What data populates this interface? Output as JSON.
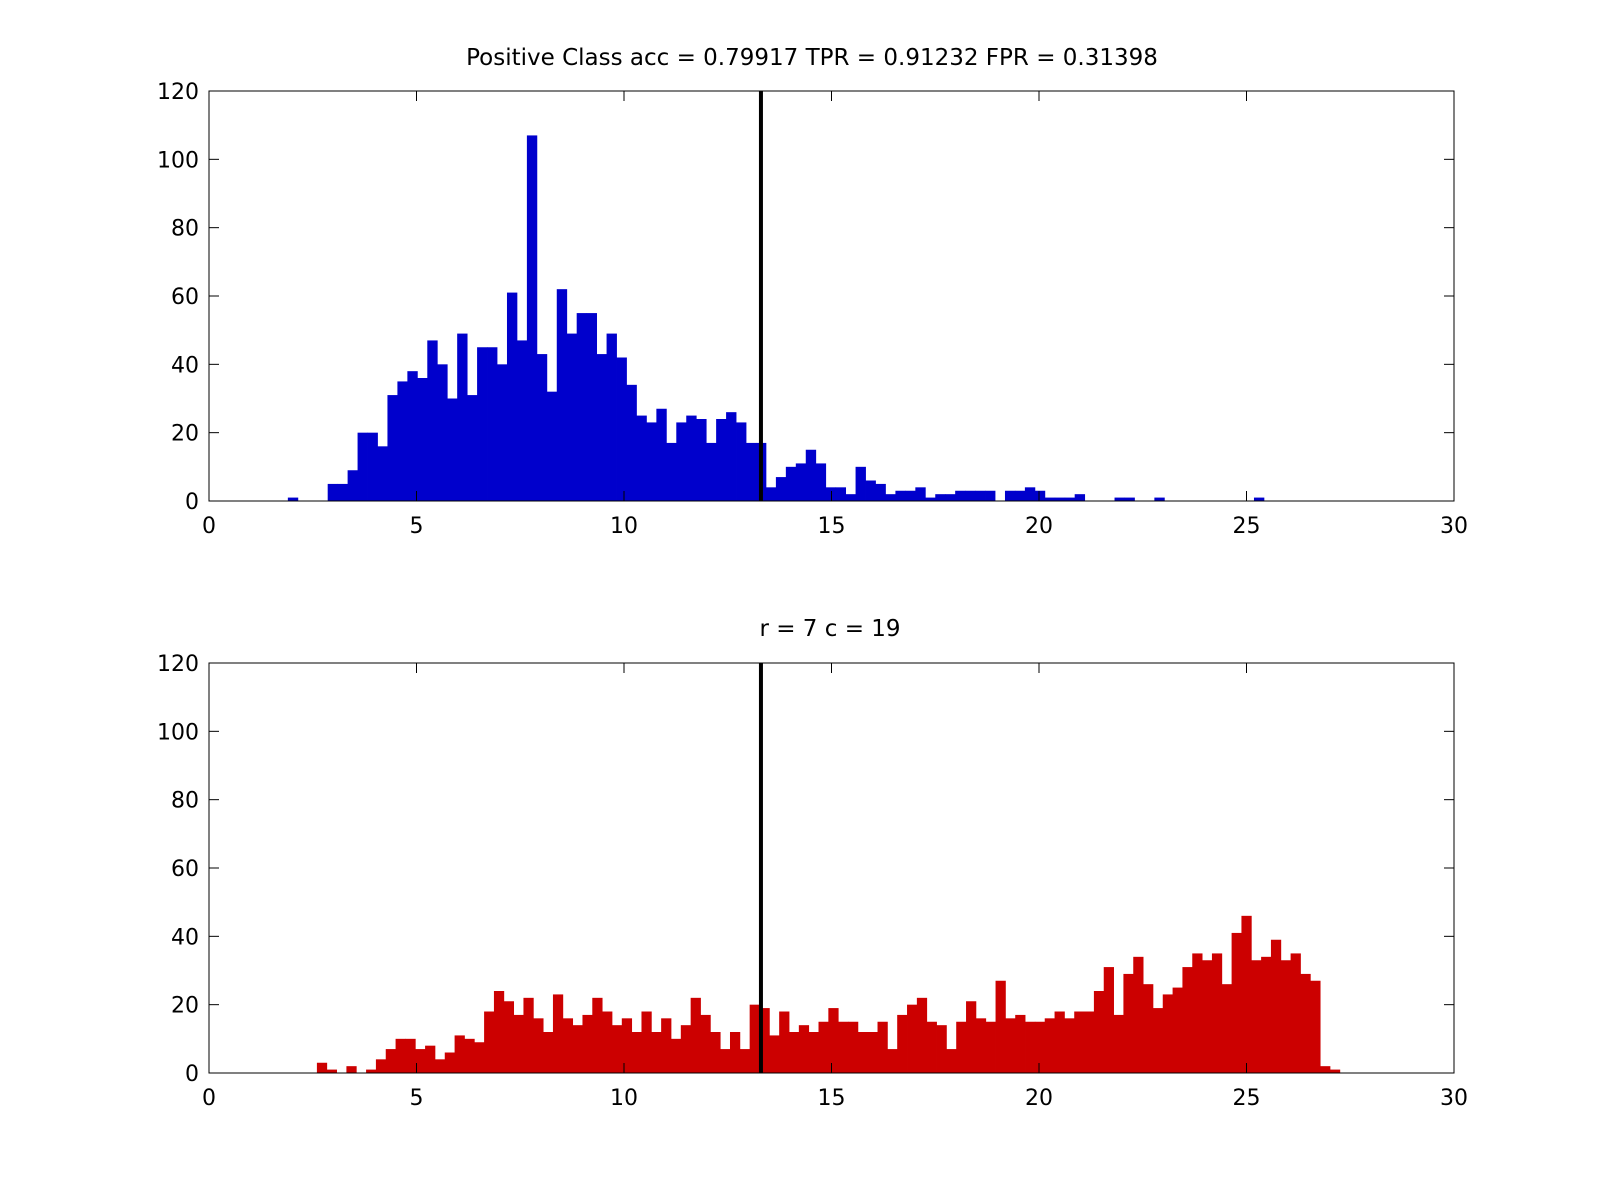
{
  "chart_data": [
    {
      "type": "bar",
      "title": "Positive Class  acc = 0.79917 TPR = 0.91232 FPR = 0.31398",
      "xlim": [
        0,
        30
      ],
      "ylim": [
        0,
        120
      ],
      "xticks": [
        0,
        5,
        10,
        15,
        20,
        25,
        30
      ],
      "yticks": [
        0,
        20,
        40,
        60,
        80,
        100,
        120
      ],
      "grid": false,
      "bar_color": "#0000cc",
      "bin_start": 1.9,
      "bin_width": 0.24,
      "values": [
        1,
        0,
        0,
        0,
        5,
        5,
        9,
        20,
        20,
        16,
        31,
        35,
        38,
        36,
        47,
        40,
        30,
        49,
        31,
        45,
        45,
        40,
        61,
        47,
        107,
        43,
        32,
        62,
        49,
        55,
        55,
        43,
        49,
        42,
        34,
        25,
        23,
        27,
        17,
        23,
        25,
        24,
        17,
        24,
        26,
        23,
        17,
        17,
        4,
        7,
        10,
        11,
        15,
        11,
        4,
        4,
        2,
        10,
        6,
        5,
        2,
        3,
        3,
        4,
        1,
        2,
        2,
        3,
        3,
        3,
        3,
        0,
        3,
        3,
        4,
        3,
        1,
        1,
        1,
        2,
        0,
        0,
        0,
        1,
        1,
        0,
        0,
        1,
        0,
        0,
        0,
        0,
        0,
        0,
        0,
        0,
        0,
        1
      ],
      "threshold": 13.3,
      "threshold_color": "#000000"
    },
    {
      "type": "bar",
      "title": "r = 7 c = 19",
      "xlim": [
        0,
        30
      ],
      "ylim": [
        0,
        120
      ],
      "xticks": [
        0,
        5,
        10,
        15,
        20,
        25,
        30
      ],
      "yticks": [
        0,
        20,
        40,
        60,
        80,
        100,
        120
      ],
      "grid": false,
      "bar_color": "#cc0000",
      "bin_start": 2.6,
      "bin_width": 0.237,
      "values": [
        3,
        1,
        0,
        2,
        0,
        1,
        4,
        7,
        10,
        10,
        7,
        8,
        4,
        6,
        11,
        10,
        9,
        18,
        24,
        21,
        17,
        22,
        16,
        12,
        23,
        16,
        14,
        17,
        22,
        18,
        14,
        16,
        12,
        18,
        12,
        16,
        10,
        14,
        22,
        17,
        12,
        7,
        12,
        7,
        20,
        19,
        11,
        18,
        12,
        14,
        12,
        15,
        19,
        15,
        15,
        12,
        12,
        15,
        7,
        17,
        20,
        22,
        15,
        14,
        7,
        15,
        21,
        16,
        15,
        27,
        16,
        17,
        15,
        15,
        16,
        18,
        16,
        18,
        18,
        24,
        31,
        17,
        29,
        34,
        26,
        19,
        23,
        25,
        31,
        35,
        33,
        35,
        26,
        41,
        46,
        33,
        34,
        39,
        33,
        35,
        29,
        27,
        2,
        1
      ]
    }
  ]
}
